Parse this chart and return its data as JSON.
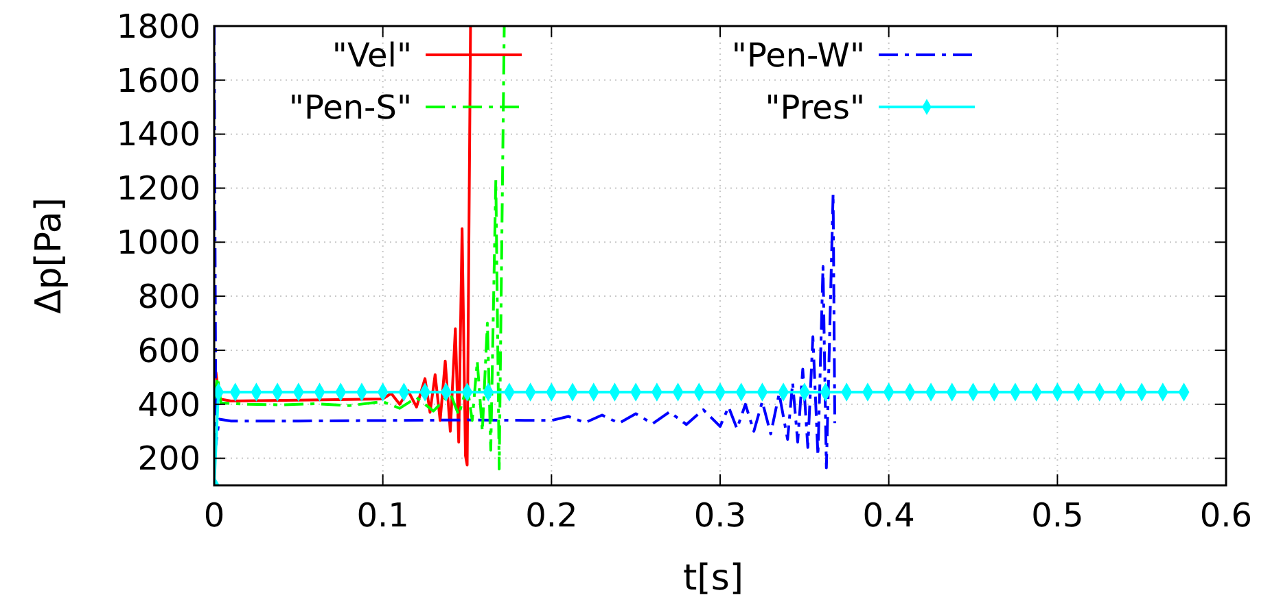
{
  "chart_data": {
    "type": "line",
    "xlabel": "t[s]",
    "ylabel": "Δp[Pa]",
    "xlim": [
      0,
      0.6
    ],
    "ylim": [
      100,
      1800
    ],
    "xticks": [
      0,
      0.1,
      0.2,
      0.3,
      0.4,
      0.5,
      0.6
    ],
    "yticks": [
      200,
      400,
      600,
      800,
      1000,
      1200,
      1400,
      1600,
      1800
    ],
    "grid": true,
    "legend": "top",
    "series": [
      {
        "name": "\"Vel\"",
        "color": "#ff0000",
        "line_style": "solid",
        "x": [
          0.001,
          0.003,
          0.01,
          0.05,
          0.08,
          0.1,
          0.105,
          0.11,
          0.115,
          0.12,
          0.125,
          0.128,
          0.131,
          0.134,
          0.137,
          0.14,
          0.143,
          0.145,
          0.147,
          0.149,
          0.15,
          0.152
        ],
        "values": [
          520,
          420,
          412,
          415,
          418,
          420,
          440,
          400,
          450,
          390,
          495,
          370,
          510,
          340,
          560,
          300,
          680,
          260,
          1050,
          210,
          175,
          1800
        ]
      },
      {
        "name": "\"Pen-W\"",
        "color": "#0000ff",
        "line_style": "dashed",
        "x": [
          0,
          0.001,
          0.003,
          0.01,
          0.05,
          0.1,
          0.15,
          0.2,
          0.21,
          0.22,
          0.23,
          0.24,
          0.25,
          0.26,
          0.27,
          0.28,
          0.29,
          0.3,
          0.305,
          0.31,
          0.315,
          0.32,
          0.325,
          0.33,
          0.335,
          0.34,
          0.343,
          0.346,
          0.349,
          0.352,
          0.355,
          0.358,
          0.361,
          0.363,
          0.367,
          0.368
        ],
        "values": [
          1800,
          250,
          345,
          338,
          338,
          340,
          342,
          340,
          355,
          332,
          360,
          330,
          365,
          328,
          372,
          325,
          380,
          318,
          390,
          310,
          400,
          300,
          410,
          290,
          440,
          270,
          480,
          260,
          530,
          240,
          650,
          210,
          910,
          165,
          1180,
          330
        ]
      },
      {
        "name": "\"Pen-S\"",
        "color": "#00ff00",
        "line_style": "dashed",
        "x": [
          0,
          0.002,
          0.004,
          0.02,
          0.04,
          0.06,
          0.08,
          0.1,
          0.11,
          0.12,
          0.13,
          0.14,
          0.145,
          0.15,
          0.153,
          0.156,
          0.159,
          0.162,
          0.164,
          0.167,
          0.169,
          0.172
        ],
        "values": [
          420,
          500,
          405,
          400,
          398,
          402,
          395,
          410,
          385,
          425,
          375,
          440,
          360,
          470,
          340,
          560,
          300,
          700,
          230,
          1230,
          160,
          1800
        ]
      },
      {
        "name": "\"Pres\"",
        "color": "#00ffff",
        "line_style": "solid",
        "marker": "diamond",
        "x": [
          0,
          0.0025,
          0.0125,
          0.025,
          0.0375,
          0.05,
          0.0625,
          0.075,
          0.0875,
          0.1,
          0.1125,
          0.125,
          0.1375,
          0.15,
          0.1625,
          0.175,
          0.1875,
          0.2,
          0.2125,
          0.225,
          0.2375,
          0.25,
          0.2625,
          0.275,
          0.2875,
          0.3,
          0.3125,
          0.325,
          0.3375,
          0.35,
          0.3625,
          0.375,
          0.3875,
          0.4,
          0.4125,
          0.425,
          0.4375,
          0.45,
          0.4625,
          0.475,
          0.4875,
          0.5,
          0.5125,
          0.525,
          0.5375,
          0.55,
          0.5625,
          0.575
        ],
        "values": [
          100,
          445,
          445,
          445,
          445,
          445,
          445,
          445,
          445,
          445,
          445,
          445,
          445,
          445,
          445,
          445,
          445,
          445,
          445,
          445,
          445,
          445,
          445,
          445,
          445,
          445,
          445,
          445,
          445,
          445,
          445,
          445,
          445,
          445,
          445,
          445,
          445,
          445,
          445,
          445,
          445,
          445,
          445,
          445,
          445,
          445,
          445,
          445
        ]
      }
    ]
  }
}
